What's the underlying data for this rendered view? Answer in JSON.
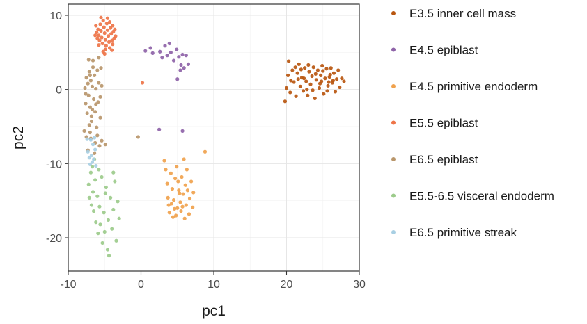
{
  "chart_data": {
    "type": "scatter",
    "title": "",
    "xlabel": "pc1",
    "ylabel": "pc2",
    "xlim": [
      -10,
      30
    ],
    "ylim": [
      -24.5,
      11.5
    ],
    "xticks": [
      -10,
      0,
      10,
      20,
      30
    ],
    "yticks": [
      10,
      0,
      -10,
      -20
    ],
    "grid": true,
    "legend_position": "right",
    "series": [
      {
        "name": "E3.5 inner cell mass",
        "color": "#b8560f",
        "points": [
          [
            19.8,
            -1.6
          ],
          [
            20.0,
            0.2
          ],
          [
            20.2,
            1.9
          ],
          [
            20.3,
            3.8
          ],
          [
            20.5,
            -0.4
          ],
          [
            20.8,
            2.6
          ],
          [
            21.0,
            1.0
          ],
          [
            21.3,
            -0.9
          ],
          [
            21.5,
            2.2
          ],
          [
            21.7,
            3.4
          ],
          [
            21.9,
            0.4
          ],
          [
            22.1,
            1.6
          ],
          [
            22.3,
            -0.2
          ],
          [
            22.5,
            2.9
          ],
          [
            22.7,
            1.1
          ],
          [
            22.9,
            -0.8
          ],
          [
            23.1,
            2.4
          ],
          [
            23.3,
            0.7
          ],
          [
            23.5,
            1.8
          ],
          [
            23.7,
            3.0
          ],
          [
            23.9,
            -1.2
          ],
          [
            24.1,
            1.3
          ],
          [
            24.3,
            2.6
          ],
          [
            24.5,
            0.2
          ],
          [
            24.7,
            1.9
          ],
          [
            24.9,
            3.2
          ],
          [
            25.1,
            -0.6
          ],
          [
            25.3,
            1.5
          ],
          [
            25.5,
            2.8
          ],
          [
            25.7,
            0.5
          ],
          [
            25.9,
            1.7
          ],
          [
            26.1,
            2.9
          ],
          [
            26.3,
            0.9
          ],
          [
            26.5,
            2.2
          ],
          [
            26.7,
            -0.3
          ],
          [
            26.9,
            1.4
          ],
          [
            27.1,
            2.6
          ],
          [
            27.3,
            0.3
          ],
          [
            27.6,
            1.5
          ],
          [
            27.9,
            1.1
          ],
          [
            21.2,
            3.0
          ],
          [
            22.0,
            2.7
          ],
          [
            23.0,
            3.3
          ],
          [
            24.0,
            2.1
          ],
          [
            25.0,
            2.5
          ],
          [
            26.0,
            2.0
          ],
          [
            23.6,
            -0.1
          ],
          [
            24.6,
            0.8
          ],
          [
            25.6,
            -0.2
          ],
          [
            26.4,
            1.2
          ],
          [
            22.8,
            0.0
          ],
          [
            21.6,
            1.4
          ],
          [
            20.6,
            1.2
          ],
          [
            22.4,
            1.5
          ],
          [
            24.8,
            1.1
          ],
          [
            25.8,
            1.0
          ]
        ]
      },
      {
        "name": "E4.5 epiblast",
        "color": "#8e63a8",
        "points": [
          [
            0.6,
            5.2
          ],
          [
            1.3,
            5.6
          ],
          [
            1.6,
            4.9
          ],
          [
            2.6,
            5.1
          ],
          [
            2.9,
            4.3
          ],
          [
            3.3,
            5.9
          ],
          [
            3.6,
            4.6
          ],
          [
            3.9,
            6.2
          ],
          [
            4.1,
            5.0
          ],
          [
            4.5,
            3.9
          ],
          [
            4.9,
            5.4
          ],
          [
            5.2,
            4.4
          ],
          [
            5.5,
            3.3
          ],
          [
            5.7,
            4.7
          ],
          [
            5.9,
            2.9
          ],
          [
            6.2,
            4.6
          ],
          [
            6.5,
            3.4
          ],
          [
            5.0,
            1.4
          ],
          [
            5.4,
            2.6
          ],
          [
            2.5,
            -5.4
          ],
          [
            5.7,
            -5.6
          ]
        ]
      },
      {
        "name": "E4.5 primitive endoderm",
        "color": "#f0a24d",
        "points": [
          [
            3.2,
            -9.6
          ],
          [
            3.4,
            -10.8
          ],
          [
            3.6,
            -12.7
          ],
          [
            3.7,
            -14.6
          ],
          [
            3.8,
            -15.6
          ],
          [
            3.9,
            -16.6
          ],
          [
            4.1,
            -11.3
          ],
          [
            4.3,
            -13.4
          ],
          [
            4.5,
            -14.9
          ],
          [
            4.6,
            -16.1
          ],
          [
            4.8,
            -17.0
          ],
          [
            4.9,
            -10.4
          ],
          [
            5.1,
            -12.4
          ],
          [
            5.2,
            -13.6
          ],
          [
            5.4,
            -15.2
          ],
          [
            5.5,
            -16.4
          ],
          [
            5.6,
            -11.8
          ],
          [
            5.8,
            -14.1
          ],
          [
            5.9,
            -9.4
          ],
          [
            6.1,
            -12.9
          ],
          [
            6.2,
            -15.6
          ],
          [
            6.4,
            -13.6
          ],
          [
            6.6,
            -16.8
          ],
          [
            6.7,
            -14.7
          ],
          [
            6.9,
            -12.4
          ],
          [
            7.1,
            -15.9
          ],
          [
            7.2,
            -13.9
          ],
          [
            4.4,
            -17.2
          ],
          [
            5.0,
            -16.0
          ],
          [
            6.0,
            -17.4
          ],
          [
            4.2,
            -15.4
          ],
          [
            5.3,
            -14.0
          ],
          [
            6.3,
            -10.8
          ],
          [
            4.7,
            -12.0
          ],
          [
            5.7,
            -15.8
          ],
          [
            8.8,
            -8.4
          ]
        ]
      },
      {
        "name": "E5.5 epiblast",
        "color": "#ee7448",
        "points": [
          [
            -6.2,
            8.6
          ],
          [
            -6.1,
            7.7
          ],
          [
            -6.0,
            6.9
          ],
          [
            -5.9,
            8.1
          ],
          [
            -5.8,
            7.3
          ],
          [
            -5.7,
            6.6
          ],
          [
            -5.6,
            8.8
          ],
          [
            -5.5,
            7.9
          ],
          [
            -5.4,
            7.0
          ],
          [
            -5.3,
            6.2
          ],
          [
            -5.2,
            9.3
          ],
          [
            -5.1,
            8.4
          ],
          [
            -5.0,
            7.6
          ],
          [
            -4.9,
            6.7
          ],
          [
            -4.8,
            5.9
          ],
          [
            -4.7,
            8.9
          ],
          [
            -4.6,
            8.0
          ],
          [
            -4.5,
            7.2
          ],
          [
            -4.4,
            6.4
          ],
          [
            -4.3,
            9.1
          ],
          [
            -4.2,
            8.3
          ],
          [
            -4.1,
            7.5
          ],
          [
            -4.0,
            6.6
          ],
          [
            -3.9,
            8.6
          ],
          [
            -3.8,
            7.8
          ],
          [
            -3.7,
            6.9
          ],
          [
            -3.6,
            8.1
          ],
          [
            -3.5,
            7.2
          ],
          [
            -5.5,
            9.7
          ],
          [
            -4.9,
            5.4
          ],
          [
            -4.3,
            5.6
          ],
          [
            -5.8,
            6.0
          ],
          [
            -4.6,
            9.6
          ],
          [
            -5.2,
            5.1
          ],
          [
            -3.9,
            6.1
          ],
          [
            -6.3,
            7.3
          ],
          [
            -4.0,
            5.3
          ],
          [
            -5.0,
            4.8
          ],
          [
            0.2,
            0.9
          ]
        ]
      },
      {
        "name": "E6.5 epiblast",
        "color": "#b9966b",
        "points": [
          [
            -7.7,
            0.2
          ],
          [
            -7.6,
            -1.9
          ],
          [
            -7.5,
            1.6
          ],
          [
            -7.4,
            -3.2
          ],
          [
            -7.3,
            0.8
          ],
          [
            -7.2,
            -0.8
          ],
          [
            -7.1,
            2.4
          ],
          [
            -7.0,
            -2.4
          ],
          [
            -6.9,
            1.2
          ],
          [
            -6.8,
            -4.3
          ],
          [
            -6.7,
            0.4
          ],
          [
            -6.6,
            3.0
          ],
          [
            -6.5,
            -1.3
          ],
          [
            -6.4,
            1.9
          ],
          [
            -6.3,
            -3.0
          ],
          [
            -6.2,
            0.1
          ],
          [
            -6.1,
            -5.1
          ],
          [
            -6.0,
            2.6
          ],
          [
            -5.9,
            -1.7
          ],
          [
            -5.8,
            0.9
          ],
          [
            -7.8,
            -5.6
          ],
          [
            -7.5,
            -6.4
          ],
          [
            -6.9,
            -6.6
          ],
          [
            -6.3,
            -7.2
          ],
          [
            -5.7,
            -7.6
          ],
          [
            -7.2,
            4.0
          ],
          [
            -6.6,
            3.9
          ],
          [
            -5.8,
            4.3
          ],
          [
            -5.5,
            2.9
          ],
          [
            -7.0,
            -5.8
          ],
          [
            -6.4,
            -8.6
          ],
          [
            -7.3,
            -8.2
          ],
          [
            -6.0,
            -6.2
          ],
          [
            -5.6,
            -1.0
          ],
          [
            -5.4,
            0.5
          ],
          [
            -7.0,
            1.9
          ],
          [
            -6.7,
            -2.7
          ],
          [
            -5.6,
            -3.8
          ],
          [
            -5.4,
            -6.9
          ],
          [
            -4.9,
            -7.4
          ],
          [
            -0.4,
            -6.4
          ],
          [
            -6.8,
            -3.6
          ],
          [
            -7.6,
            -0.6
          ],
          [
            -6.2,
            -2.0
          ],
          [
            -7.1,
            -4.8
          ]
        ]
      },
      {
        "name": "E5.5-6.5 visceral endoderm",
        "color": "#9ccb8b",
        "points": [
          [
            -7.2,
            -12.8
          ],
          [
            -7.1,
            -14.6
          ],
          [
            -6.9,
            -11.2
          ],
          [
            -6.8,
            -15.6
          ],
          [
            -6.7,
            -10.4
          ],
          [
            -6.6,
            -13.8
          ],
          [
            -6.5,
            -16.4
          ],
          [
            -6.3,
            -12.2
          ],
          [
            -6.2,
            -17.9
          ],
          [
            -6.0,
            -14.4
          ],
          [
            -5.9,
            -19.4
          ],
          [
            -5.7,
            -15.8
          ],
          [
            -5.6,
            -18.2
          ],
          [
            -5.4,
            -11.8
          ],
          [
            -5.3,
            -20.7
          ],
          [
            -5.1,
            -16.6
          ],
          [
            -5.0,
            -19.2
          ],
          [
            -4.8,
            -13.2
          ],
          [
            -4.6,
            -21.6
          ],
          [
            -4.5,
            -17.6
          ],
          [
            -4.4,
            -22.4
          ],
          [
            -4.2,
            -14.6
          ],
          [
            -4.0,
            -18.8
          ],
          [
            -3.8,
            -16.2
          ],
          [
            -3.6,
            -12.4
          ],
          [
            -3.4,
            -20.4
          ],
          [
            -3.2,
            -15.1
          ],
          [
            -3.0,
            -17.4
          ],
          [
            -6.4,
            -9.4
          ],
          [
            -5.8,
            -10.8
          ],
          [
            -4.9,
            -14.0
          ],
          [
            -3.8,
            -11.2
          ]
        ]
      },
      {
        "name": "E6.5 primitive streak",
        "color": "#a8cfe3",
        "points": [
          [
            -7.3,
            -8.4
          ],
          [
            -7.1,
            -9.2
          ],
          [
            -7.0,
            -10.1
          ],
          [
            -6.9,
            -6.8
          ],
          [
            -6.8,
            -8.9
          ],
          [
            -6.7,
            -9.8
          ],
          [
            -6.6,
            -7.4
          ],
          [
            -6.5,
            -9.4
          ],
          [
            -6.3,
            -8.1
          ],
          [
            -6.2,
            -10.3
          ],
          [
            -7.4,
            -6.7
          ],
          [
            -6.4,
            -6.5
          ]
        ]
      }
    ]
  }
}
